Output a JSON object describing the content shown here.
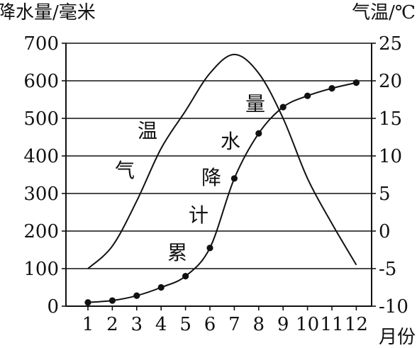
{
  "chart_data": {
    "type": "line",
    "title": "",
    "xlabel": "月份",
    "ylabel_left": "降水量/毫米",
    "ylabel_right": "气温/℃",
    "x": [
      1,
      2,
      3,
      4,
      5,
      6,
      7,
      8,
      9,
      10,
      11,
      12
    ],
    "ylim_left": [
      0,
      700
    ],
    "ylim_right": [
      -10,
      25
    ],
    "yticks_left": [
      0,
      100,
      200,
      300,
      400,
      500,
      600,
      700
    ],
    "yticks_right": [
      -10,
      -5,
      0,
      5,
      10,
      15,
      20,
      25
    ],
    "grid": "horizontal",
    "series": [
      {
        "name": "累计降水量",
        "axis": "left",
        "markers": true,
        "values": [
          10,
          15,
          28,
          50,
          80,
          155,
          340,
          460,
          530,
          560,
          580,
          595
        ]
      },
      {
        "name": "气温",
        "axis": "right",
        "markers": false,
        "values": [
          -5,
          -2,
          4,
          11,
          16,
          21,
          23.5,
          21,
          15,
          7,
          1,
          -4.5
        ]
      }
    ],
    "annotations": [
      {
        "text": "温",
        "series": "气温"
      },
      {
        "text": "气",
        "series": "气温"
      },
      {
        "text": "量",
        "series": "累计降水量"
      },
      {
        "text": "水",
        "series": "累计降水量"
      },
      {
        "text": "降",
        "series": "累计降水量"
      },
      {
        "text": "计",
        "series": "累计降水量"
      },
      {
        "text": "累",
        "series": "累计降水量"
      }
    ]
  }
}
